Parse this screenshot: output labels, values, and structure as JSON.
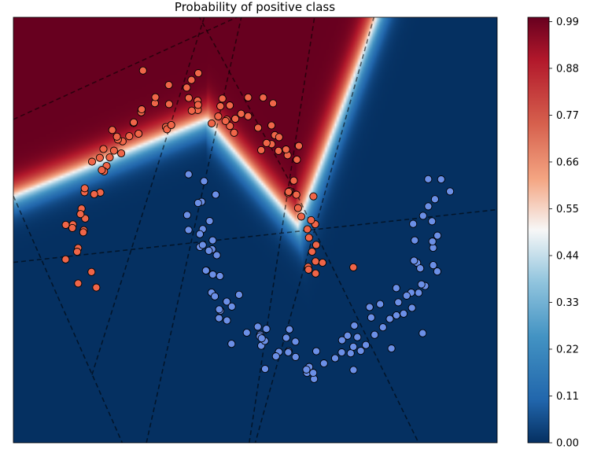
{
  "chart_data": {
    "type": "heatmap",
    "title": "Probability of positive class",
    "xlabel": "",
    "ylabel": "",
    "x_range": [
      -1.5,
      2.5
    ],
    "y_range": [
      -1.0,
      1.5
    ],
    "colormap": "RdBu_r",
    "colors": {
      "low": "#053061",
      "mid": "#f7f7f7",
      "high": "#67001f",
      "positive_points": "#ef6548",
      "negative_points": "#6b8fe6",
      "point_edge": "#000000",
      "dashed_lines": "#000000"
    },
    "colorbar": {
      "ticks": [
        "0.00",
        "0.11",
        "0.22",
        "0.33",
        "0.44",
        "0.55",
        "0.66",
        "0.77",
        "0.88",
        "0.99"
      ],
      "range": [
        0,
        1
      ]
    },
    "grid": false,
    "axes_ticks_visible": false,
    "series": [
      {
        "name": "",
        "class": "positive",
        "shape": "upper half-moon",
        "center": [
          0,
          0
        ],
        "radius": 1.0,
        "count": 100
      },
      {
        "name": "",
        "class": "negative",
        "shape": "lower half-moon",
        "center": [
          1,
          0.5
        ],
        "radius": 1.0,
        "count": 100
      }
    ],
    "hyperplanes": [
      {
        "p1": [
          -1.5,
          0.9
        ],
        "p2": [
          0.5,
          1.55
        ]
      },
      {
        "p1": [
          -1.5,
          0.06
        ],
        "p2": [
          2.5,
          0.37
        ]
      },
      {
        "p1": [
          -1.5,
          0.45
        ],
        "p2": [
          -0.6,
          -1.0
        ]
      },
      {
        "p1": [
          -0.4,
          -1.0
        ],
        "p2": [
          0.4,
          1.55
        ]
      },
      {
        "p1": [
          0.45,
          -1.0
        ],
        "p2": [
          1.0,
          1.55
        ]
      },
      {
        "p1": [
          1.5,
          1.55
        ],
        "p2": [
          0.5,
          -1.0
        ]
      },
      {
        "p1": [
          0.0,
          1.55
        ],
        "p2": [
          0.85,
          0.45
        ]
      },
      {
        "p1": [
          0.85,
          0.45
        ],
        "p2": [
          1.85,
          -1.0
        ]
      },
      {
        "p1": [
          -0.85,
          -0.6
        ],
        "p2": [
          0.1,
          1.55
        ]
      }
    ]
  }
}
